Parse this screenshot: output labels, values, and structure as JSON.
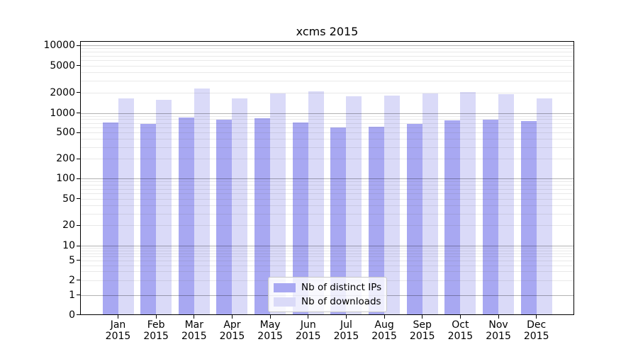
{
  "title": "xcms 2015",
  "chart_data": {
    "type": "bar",
    "categories": [
      "Jan",
      "Feb",
      "Mar",
      "Apr",
      "May",
      "Jun",
      "Jul",
      "Aug",
      "Sep",
      "Oct",
      "Nov",
      "Dec"
    ],
    "year_label": "2015",
    "series": [
      {
        "name": "Nb of distinct IPs",
        "color": "#a8a8f2",
        "values": [
          715,
          680,
          850,
          790,
          830,
          715,
          600,
          615,
          680,
          770,
          790,
          750
        ]
      },
      {
        "name": "Nb of downloads",
        "color": "#dadaf8",
        "values": [
          1640,
          1560,
          2300,
          1650,
          1940,
          2090,
          1760,
          1810,
          1940,
          2040,
          1900,
          1640
        ]
      }
    ],
    "yscale": "log-with-zero",
    "yticks": [
      0,
      1,
      2,
      5,
      10,
      20,
      50,
      100,
      200,
      500,
      1000,
      2000,
      5000,
      10000
    ],
    "ylim": [
      0,
      11500
    ],
    "xlabel": "",
    "ylabel": "",
    "grid": "horizontal",
    "legend_position": "bottom-center"
  },
  "colors": {
    "grid_major": "#b3b3b3",
    "grid_minor": "#e9e9e9",
    "spine": "#000000",
    "background": "#ffffff"
  }
}
